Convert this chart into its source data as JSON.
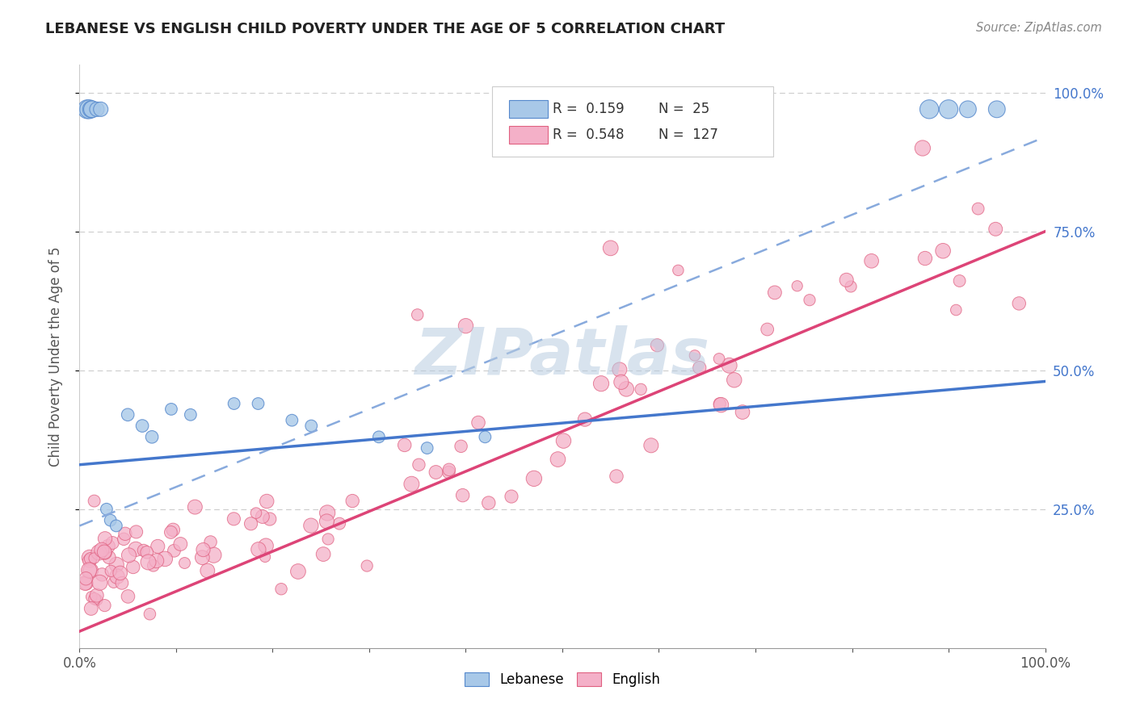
{
  "title": "LEBANESE VS ENGLISH CHILD POVERTY UNDER THE AGE OF 5 CORRELATION CHART",
  "source": "Source: ZipAtlas.com",
  "ylabel": "Child Poverty Under the Age of 5",
  "yticks": [
    "25.0%",
    "50.0%",
    "75.0%",
    "100.0%"
  ],
  "ytick_vals": [
    0.25,
    0.5,
    0.75,
    1.0
  ],
  "legend_leb_R": "0.159",
  "legend_leb_N": "25",
  "legend_eng_R": "0.548",
  "legend_eng_N": "127",
  "lebanese_fill": "#a8c8e8",
  "lebanese_edge": "#5588cc",
  "english_fill": "#f4b0c8",
  "english_edge": "#e06080",
  "blue_line_color": "#4477cc",
  "pink_line_color": "#dd4477",
  "dashed_line_color": "#88aadd",
  "grid_color": "#cccccc",
  "background_color": "#ffffff",
  "xlim": [
    0.0,
    1.0
  ],
  "ylim": [
    0.0,
    1.05
  ],
  "leb_line_x0": 0.0,
  "leb_line_y0": 0.33,
  "leb_line_x1": 1.0,
  "leb_line_y1": 0.48,
  "eng_line_x0": 0.0,
  "eng_line_y0": 0.03,
  "eng_line_x1": 1.0,
  "eng_line_y1": 0.75,
  "dash_line_x0": 0.0,
  "dash_line_y0": 0.22,
  "dash_line_x1": 1.0,
  "dash_line_y1": 0.92,
  "watermark_color": "#b8cce0",
  "title_color": "#222222",
  "source_color": "#888888",
  "axis_label_color": "#555555",
  "tick_label_color": "#555555",
  "right_tick_color": "#4477cc"
}
